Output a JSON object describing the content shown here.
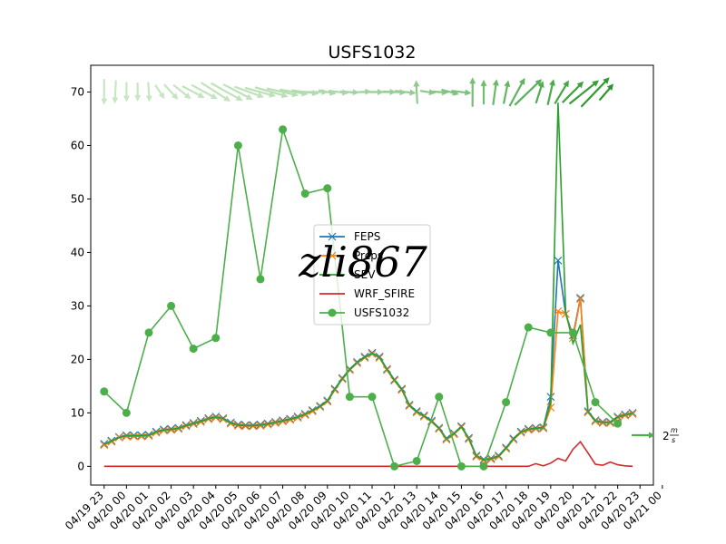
{
  "chart_data": {
    "type": "line",
    "title": "USFS1032",
    "xlabel": "",
    "ylabel": "",
    "ylim": [
      -3.5,
      75
    ],
    "xlim": [
      -0.6,
      24.6
    ],
    "grid": false,
    "legend_position": "center",
    "yticks": [
      0,
      10,
      20,
      30,
      40,
      50,
      60,
      70
    ],
    "x_tick_labels": [
      "04/19 23",
      "04/20 00",
      "04/20 01",
      "04/20 02",
      "04/20 03",
      "04/20 04",
      "04/20 05",
      "04/20 06",
      "04/20 07",
      "04/20 08",
      "04/20 09",
      "04/20 10",
      "04/20 11",
      "04/20 12",
      "04/20 13",
      "04/20 14",
      "04/20 15",
      "04/20 16",
      "04/20 17",
      "04/20 18",
      "04/20 19",
      "04/20 20",
      "04/20 21",
      "04/20 22",
      "04/20 23",
      "04/21 00"
    ],
    "series": [
      {
        "name": "FEPS",
        "color": "#1f77b4",
        "marker": "x",
        "x": [
          0.0,
          0.33,
          0.67,
          1.0,
          1.33,
          1.67,
          2.0,
          2.33,
          2.67,
          3.0,
          3.33,
          3.67,
          4.0,
          4.33,
          4.67,
          5.0,
          5.33,
          5.67,
          6.0,
          6.33,
          6.67,
          7.0,
          7.33,
          7.67,
          8.0,
          8.33,
          8.67,
          9.0,
          9.33,
          9.67,
          10.0,
          10.33,
          10.67,
          11.0,
          11.33,
          11.67,
          12.0,
          12.33,
          12.67,
          13.0,
          13.33,
          13.67,
          14.0,
          14.33,
          14.67,
          15.0,
          15.33,
          15.67,
          16.0,
          16.33,
          16.67,
          17.0,
          17.33,
          17.67,
          18.0,
          18.33,
          18.67,
          19.0,
          19.33,
          19.67,
          20.0,
          20.33,
          20.67,
          21.0,
          21.33,
          21.67,
          22.0,
          22.33,
          22.67,
          23.0,
          23.33,
          23.67
        ],
        "y": [
          4.2,
          4.8,
          5.5,
          5.8,
          5.8,
          5.8,
          5.9,
          6.5,
          6.9,
          7.0,
          7.2,
          7.7,
          8.1,
          8.5,
          9.0,
          9.3,
          9.0,
          8.2,
          7.8,
          7.7,
          7.7,
          7.8,
          8.0,
          8.3,
          8.6,
          8.9,
          9.3,
          9.8,
          10.5,
          11.3,
          12.3,
          14.5,
          16.5,
          18.2,
          19.5,
          20.5,
          21.2,
          20.5,
          18.2,
          16.2,
          14.5,
          11.5,
          10.3,
          9.5,
          8.5,
          7.2,
          5.2,
          6.2,
          7.5,
          5.3,
          2.0,
          1.3,
          1.5,
          2.0,
          3.5,
          5.2,
          6.5,
          7.0,
          7.2,
          7.3,
          13.0,
          38.5,
          28.5,
          24.5,
          31.5,
          10.3,
          8.6,
          8.3,
          8.3,
          9.3,
          9.7,
          10.0
        ]
      },
      {
        "name": "Prcps",
        "color": "#ff7f0e",
        "marker": "x",
        "x": [
          0.0,
          0.33,
          0.67,
          1.0,
          1.33,
          1.67,
          2.0,
          2.33,
          2.67,
          3.0,
          3.33,
          3.67,
          4.0,
          4.33,
          4.67,
          5.0,
          5.33,
          5.67,
          6.0,
          6.33,
          6.67,
          7.0,
          7.33,
          7.67,
          8.0,
          8.33,
          8.67,
          9.0,
          9.33,
          9.67,
          10.0,
          10.33,
          10.67,
          11.0,
          11.33,
          11.67,
          12.0,
          12.33,
          12.67,
          13.0,
          13.33,
          13.67,
          14.0,
          14.33,
          14.67,
          15.0,
          15.33,
          15.67,
          16.0,
          16.33,
          16.67,
          17.0,
          17.33,
          17.67,
          18.0,
          18.33,
          18.67,
          19.0,
          19.33,
          19.67,
          20.0,
          20.33,
          20.67,
          21.0,
          21.33,
          21.67,
          22.0,
          22.33,
          22.67,
          23.0,
          23.33,
          23.67
        ],
        "y": [
          4.0,
          4.6,
          5.4,
          5.6,
          5.6,
          5.6,
          5.7,
          6.3,
          6.7,
          6.8,
          7.0,
          7.5,
          7.9,
          8.3,
          8.8,
          9.1,
          8.8,
          8.0,
          7.6,
          7.5,
          7.5,
          7.6,
          7.8,
          8.1,
          8.4,
          8.7,
          9.1,
          9.6,
          10.3,
          11.1,
          12.1,
          14.3,
          16.3,
          18.0,
          19.3,
          20.3,
          21.0,
          20.3,
          18.0,
          16.0,
          14.3,
          11.3,
          10.1,
          9.3,
          8.3,
          7.0,
          5.0,
          6.0,
          7.3,
          5.1,
          1.8,
          1.1,
          1.3,
          1.8,
          3.3,
          5.0,
          6.3,
          6.8,
          7.0,
          7.1,
          11.0,
          29.0,
          28.5,
          24.0,
          31.3,
          10.1,
          8.4,
          8.1,
          8.1,
          9.1,
          9.5,
          9.8
        ]
      },
      {
        "name": "SEV",
        "color": "#2ca02c",
        "marker": "none",
        "x": [
          0.0,
          0.33,
          0.67,
          1.0,
          1.33,
          1.67,
          2.0,
          2.33,
          2.67,
          3.0,
          3.33,
          3.67,
          4.0,
          4.33,
          4.67,
          5.0,
          5.33,
          5.67,
          6.0,
          6.33,
          6.67,
          7.0,
          7.33,
          7.67,
          8.0,
          8.33,
          8.67,
          9.0,
          9.33,
          9.67,
          10.0,
          10.33,
          10.67,
          11.0,
          11.33,
          11.67,
          12.0,
          12.33,
          12.67,
          13.0,
          13.33,
          13.67,
          14.0,
          14.33,
          14.67,
          15.0,
          15.33,
          15.67,
          16.0,
          16.33,
          16.67,
          17.0,
          17.33,
          17.67,
          18.0,
          18.33,
          18.67,
          19.0,
          19.33,
          19.67,
          20.0,
          20.33,
          20.67,
          21.0,
          21.33,
          21.67,
          22.0,
          22.33,
          22.67,
          23.0,
          23.33,
          23.67
        ],
        "y": [
          4.1,
          4.7,
          5.4,
          5.7,
          5.7,
          5.7,
          5.8,
          6.4,
          6.8,
          6.9,
          7.1,
          7.6,
          8.0,
          8.4,
          8.9,
          9.2,
          8.9,
          8.1,
          7.7,
          7.6,
          7.6,
          7.7,
          7.9,
          8.2,
          8.5,
          8.8,
          9.2,
          9.7,
          10.4,
          11.2,
          12.2,
          14.4,
          16.4,
          18.1,
          19.4,
          20.4,
          21.1,
          20.4,
          18.1,
          16.1,
          14.4,
          11.4,
          10.2,
          9.4,
          8.4,
          7.1,
          5.1,
          6.1,
          7.4,
          5.2,
          1.9,
          1.2,
          1.4,
          1.9,
          3.4,
          5.1,
          6.4,
          6.9,
          7.1,
          7.2,
          12.0,
          68.0,
          29.0,
          23.0,
          26.5,
          10.2,
          8.5,
          8.2,
          8.2,
          9.2,
          9.6,
          9.9
        ]
      },
      {
        "name": "WRF_SFIRE",
        "color": "#d62728",
        "marker": "none",
        "x": [
          0.0,
          1.0,
          2.0,
          3.0,
          4.0,
          5.0,
          6.0,
          7.0,
          8.0,
          9.0,
          10.0,
          11.0,
          12.0,
          13.0,
          14.0,
          15.0,
          16.0,
          17.0,
          18.0,
          19.0,
          19.33,
          19.67,
          20.0,
          20.33,
          20.67,
          21.0,
          21.33,
          21.67,
          22.0,
          22.33,
          22.67,
          23.0,
          23.33,
          23.67
        ],
        "y": [
          0,
          0,
          0,
          0,
          0,
          0,
          0,
          0,
          0,
          0,
          0,
          0,
          0,
          0,
          0,
          0,
          0,
          0,
          0,
          0,
          0.5,
          0.1,
          0.6,
          1.5,
          1.0,
          3.2,
          4.6,
          2.5,
          0.4,
          0.2,
          0.8,
          0.3,
          0.1,
          0.0
        ]
      },
      {
        "name": "USFS1032",
        "color": "#4daf4a",
        "marker": "o",
        "x": [
          0,
          1,
          2,
          3,
          4,
          5,
          6,
          7,
          8,
          9,
          10,
          11,
          12,
          13,
          14,
          15,
          16,
          17,
          18,
          19,
          20,
          21,
          22,
          23
        ],
        "y": [
          14,
          10,
          25,
          30,
          22,
          24,
          60,
          35,
          63,
          51,
          52,
          13,
          13,
          0,
          1,
          13,
          0,
          0,
          12,
          26,
          25,
          25,
          12,
          8
        ]
      }
    ],
    "wind_vectors": {
      "y_level": 70,
      "reference_label_prefix": "2",
      "reference_label_unit_num": "m",
      "reference_label_unit_den": "s",
      "reference_speed": 2,
      "vectors": [
        {
          "x": 0.0,
          "u": 0.0,
          "v": -2.2
        },
        {
          "x": 0.5,
          "u": -0.1,
          "v": -2.0
        },
        {
          "x": 1.0,
          "u": 0.0,
          "v": -1.7
        },
        {
          "x": 1.5,
          "u": 0.0,
          "v": -1.6
        },
        {
          "x": 2.0,
          "u": 0.1,
          "v": -1.7
        },
        {
          "x": 2.5,
          "u": 0.8,
          "v": -1.2
        },
        {
          "x": 3.0,
          "u": 1.2,
          "v": -1.3
        },
        {
          "x": 3.5,
          "u": 1.5,
          "v": -1.2
        },
        {
          "x": 4.0,
          "u": 1.9,
          "v": -1.0
        },
        {
          "x": 4.5,
          "u": 2.2,
          "v": -1.2
        },
        {
          "x": 5.0,
          "u": 2.5,
          "v": -1.6
        },
        {
          "x": 5.5,
          "u": 2.7,
          "v": -1.5
        },
        {
          "x": 6.0,
          "u": 2.5,
          "v": -1.3
        },
        {
          "x": 6.5,
          "u": 2.5,
          "v": -0.9
        },
        {
          "x": 7.0,
          "u": 2.6,
          "v": -0.7
        },
        {
          "x": 7.5,
          "u": 2.8,
          "v": -0.8
        },
        {
          "x": 8.0,
          "u": 2.7,
          "v": -0.6
        },
        {
          "x": 8.5,
          "u": 2.4,
          "v": -0.4
        },
        {
          "x": 9.0,
          "u": 2.3,
          "v": -0.3
        },
        {
          "x": 9.5,
          "u": 2.0,
          "v": 0.0
        },
        {
          "x": 10.0,
          "u": 1.5,
          "v": -0.3
        },
        {
          "x": 10.5,
          "u": 1.7,
          "v": -0.2
        },
        {
          "x": 11.0,
          "u": 1.6,
          "v": -0.1
        },
        {
          "x": 11.5,
          "u": 1.8,
          "v": 0.1
        },
        {
          "x": 12.0,
          "u": 2.0,
          "v": 0.0
        },
        {
          "x": 12.5,
          "u": 2.2,
          "v": 0.0
        },
        {
          "x": 13.0,
          "u": 2.0,
          "v": -0.1
        },
        {
          "x": 13.5,
          "u": 1.8,
          "v": -0.2
        },
        {
          "x": 14.0,
          "u": -0.1,
          "v": 2.0
        },
        {
          "x": 14.5,
          "u": 1.3,
          "v": -0.2
        },
        {
          "x": 15.0,
          "u": 1.6,
          "v": -0.1
        },
        {
          "x": 15.5,
          "u": 1.5,
          "v": -0.4
        },
        {
          "x": 16.0,
          "u": 1.7,
          "v": -0.2
        },
        {
          "x": 16.5,
          "u": 0.0,
          "v": 2.5
        },
        {
          "x": 17.0,
          "u": 0.0,
          "v": 2.1
        },
        {
          "x": 17.5,
          "u": 0.3,
          "v": 2.2
        },
        {
          "x": 18.0,
          "u": 0.4,
          "v": 2.0
        },
        {
          "x": 18.5,
          "u": 1.3,
          "v": 2.4
        },
        {
          "x": 19.0,
          "u": 2.3,
          "v": 2.2
        },
        {
          "x": 19.5,
          "u": 0.6,
          "v": 1.9
        },
        {
          "x": 20.0,
          "u": 0.5,
          "v": 2.2
        },
        {
          "x": 20.5,
          "u": 1.2,
          "v": 2.0
        },
        {
          "x": 21.0,
          "u": 1.8,
          "v": 1.8
        },
        {
          "x": 21.5,
          "u": 2.5,
          "v": 2.0
        },
        {
          "x": 22.0,
          "u": 2.4,
          "v": 2.5
        },
        {
          "x": 22.5,
          "u": 1.2,
          "v": 1.4
        }
      ]
    }
  },
  "watermark": "zli867"
}
